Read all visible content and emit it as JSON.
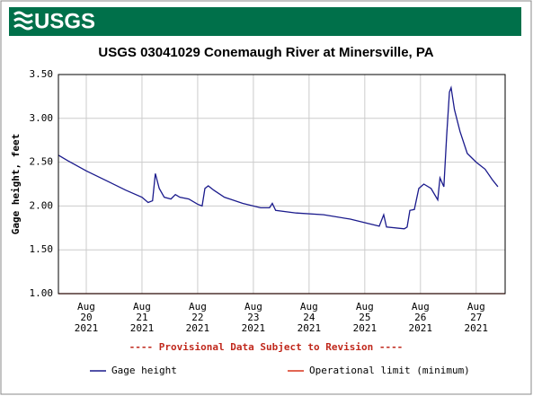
{
  "header": {
    "logo": "USGS"
  },
  "chart_data": {
    "type": "line",
    "title": "USGS 03041029 Conemaugh River at Minersville, PA",
    "ylabel": "Gage height, feet",
    "annotation": "---- Provisional Data Subject to Revision ----",
    "xlim": [
      19.5,
      27.52
    ],
    "xticks": [
      {
        "value": 20,
        "label": "Aug\n20\n2021"
      },
      {
        "value": 21,
        "label": "Aug\n21\n2021"
      },
      {
        "value": 22,
        "label": "Aug\n22\n2021"
      },
      {
        "value": 23,
        "label": "Aug\n23\n2021"
      },
      {
        "value": 24,
        "label": "Aug\n24\n2021"
      },
      {
        "value": 25,
        "label": "Aug\n25\n2021"
      },
      {
        "value": 26,
        "label": "Aug\n26\n2021"
      },
      {
        "value": 27,
        "label": "Aug\n27\n2021"
      }
    ],
    "ylim": [
      1.0,
      3.5
    ],
    "yticks": [
      {
        "value": 1.0,
        "label": "1.00"
      },
      {
        "value": 1.5,
        "label": "1.50"
      },
      {
        "value": 2.0,
        "label": "2.00"
      },
      {
        "value": 2.5,
        "label": "2.50"
      },
      {
        "value": 3.0,
        "label": "3.00"
      },
      {
        "value": 3.5,
        "label": "3.50"
      }
    ],
    "grid": true,
    "series": [
      {
        "name": "Gage height",
        "color": "#1a1a8c",
        "x": [
          19.5,
          19.66,
          20.0,
          20.39,
          20.71,
          21.0,
          21.11,
          21.19,
          21.24,
          21.31,
          21.4,
          21.52,
          21.6,
          21.68,
          21.84,
          22.0,
          22.08,
          22.13,
          22.19,
          22.29,
          22.48,
          22.81,
          23.13,
          23.29,
          23.34,
          23.4,
          23.77,
          24.26,
          24.74,
          25.06,
          25.26,
          25.34,
          25.39,
          25.71,
          25.76,
          25.81,
          25.89,
          25.97,
          26.06,
          26.19,
          26.31,
          26.35,
          26.42,
          26.47,
          26.52,
          26.55,
          26.61,
          26.71,
          26.84,
          27.0,
          27.16,
          27.29,
          27.39
        ],
        "values": [
          2.58,
          2.52,
          2.4,
          2.28,
          2.18,
          2.1,
          2.04,
          2.06,
          2.37,
          2.2,
          2.1,
          2.08,
          2.13,
          2.1,
          2.08,
          2.02,
          2.0,
          2.2,
          2.23,
          2.18,
          2.1,
          2.03,
          1.98,
          1.98,
          2.03,
          1.95,
          1.92,
          1.9,
          1.85,
          1.8,
          1.77,
          1.9,
          1.76,
          1.74,
          1.76,
          1.95,
          1.96,
          2.2,
          2.25,
          2.2,
          2.07,
          2.32,
          2.22,
          2.8,
          3.3,
          3.35,
          3.1,
          2.85,
          2.6,
          2.5,
          2.42,
          2.3,
          2.22
        ]
      },
      {
        "name": "Operational limit (minimum)",
        "color": "#d9341c",
        "x": [
          19.5,
          27.52
        ],
        "values": [
          1.0,
          1.0
        ]
      }
    ]
  }
}
